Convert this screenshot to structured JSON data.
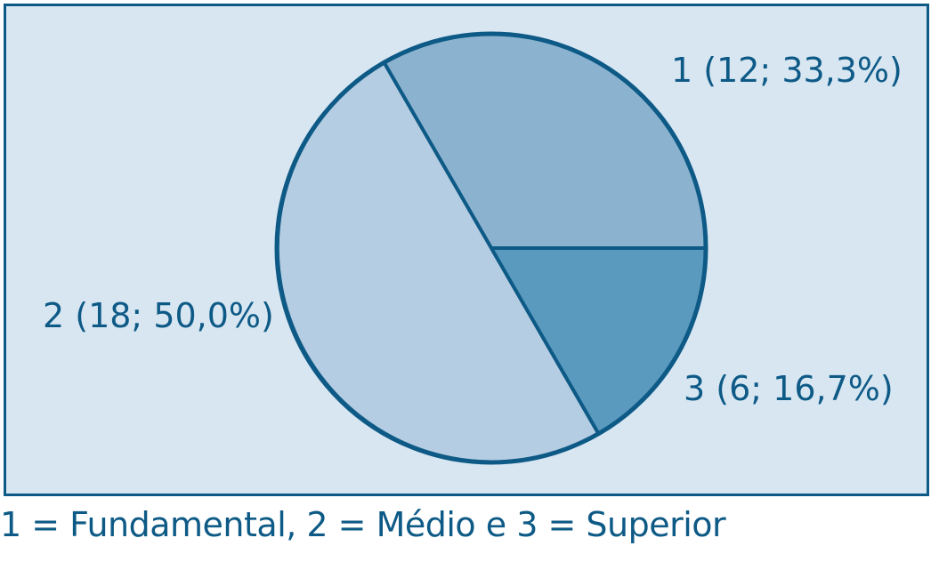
{
  "chart_data": {
    "type": "pie",
    "categories": [
      "1",
      "2",
      "3"
    ],
    "values": [
      12,
      18,
      6
    ],
    "labels": [
      "1 (12; 33,3%)",
      "2 (18; 50,0%)",
      "3 (6; 16,7%)"
    ],
    "colors": [
      "#8bb3d0",
      "#b5cde2",
      "#5b9abf"
    ],
    "title": "",
    "legend": "bottom"
  },
  "caption": "1 = Fundamental, 2 = Médio e 3 = Superior",
  "colors": {
    "frame_border": "#0e5a86",
    "frame_fill": "#d8e6f2",
    "text": "#0e5a86",
    "slice_stroke": "#0e5a86"
  }
}
